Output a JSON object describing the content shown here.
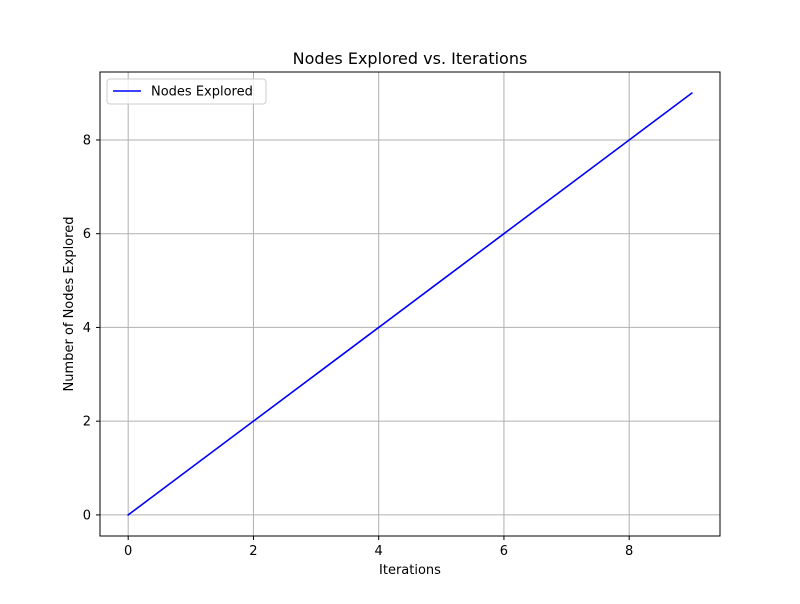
{
  "chart_data": {
    "type": "line",
    "title": "Nodes Explored vs. Iterations",
    "xlabel": "Iterations",
    "ylabel": "Number of Nodes Explored",
    "x": [
      0,
      1,
      2,
      3,
      4,
      5,
      6,
      7,
      8,
      9
    ],
    "series": [
      {
        "name": "Nodes Explored",
        "values": [
          0,
          1,
          2,
          3,
          4,
          5,
          6,
          7,
          8,
          9
        ],
        "color": "#0000ff"
      }
    ],
    "xlim": [
      -0.45,
      9.45
    ],
    "ylim": [
      -0.45,
      9.45
    ],
    "xticks": [
      0,
      2,
      4,
      6,
      8
    ],
    "yticks": [
      0,
      2,
      4,
      6,
      8
    ],
    "grid": true,
    "legend_position": "top-left"
  },
  "colors": {
    "grid": "#b0b0b0",
    "axes": "#000000",
    "background": "#ffffff"
  }
}
